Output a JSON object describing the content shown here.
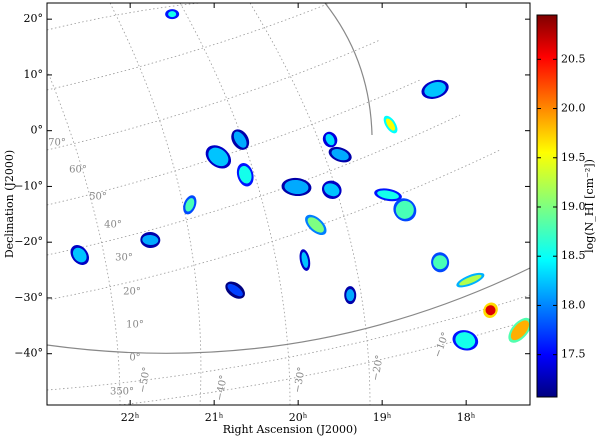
{
  "chart_data": {
    "type": "map",
    "xlabel": "Right Ascension (J2000)",
    "ylabel": "Declination (J2000)",
    "colorbar_label": "log(N_HI [cm⁻²])",
    "xlim": [
      22.99,
      17.24
    ],
    "ylim": [
      -49.2,
      22.9
    ],
    "xticks": [
      {
        "value": 22,
        "label": "22ʰ"
      },
      {
        "value": 21,
        "label": "21ʰ"
      },
      {
        "value": 20,
        "label": "20ʰ"
      },
      {
        "value": 19,
        "label": "19ʰ"
      },
      {
        "value": 18,
        "label": "18ʰ"
      }
    ],
    "yticks": [
      {
        "value": 20,
        "label": "20°"
      },
      {
        "value": 10,
        "label": "10°"
      },
      {
        "value": 0,
        "label": "0°"
      },
      {
        "value": -10,
        "label": "−10°"
      },
      {
        "value": -20,
        "label": "−20°"
      },
      {
        "value": -30,
        "label": "−30°"
      },
      {
        "value": -40,
        "label": "−40°"
      }
    ],
    "clim": [
      17.07,
      20.95
    ],
    "cticks": [
      {
        "value": 17.5,
        "label": "17.5"
      },
      {
        "value": 18,
        "label": "18.0"
      },
      {
        "value": 18.5,
        "label": "18.5"
      },
      {
        "value": 19,
        "label": "19.0"
      },
      {
        "value": 19.5,
        "label": "19.5"
      },
      {
        "value": 20,
        "label": "20.0"
      },
      {
        "value": 20.5,
        "label": "20.5"
      }
    ],
    "colormap": "jet",
    "x": [
      21.5,
      20.95,
      20.63,
      21.29,
      20.69,
      20.02,
      19.79,
      19.92,
      19.6,
      19.62,
      18.93,
      18.73,
      18.31,
      17.71,
      17.95,
      18.01,
      22.6,
      19.38,
      20.75,
      18.37,
      19.5,
      18.9,
      21.76,
      17.36
    ],
    "y": [
      20.9,
      -4.7,
      -7.9,
      -13.3,
      -1.6,
      -10.1,
      -16.9,
      -23.2,
      -10.6,
      -1.6,
      -11.5,
      -14.2,
      -23.6,
      -32.2,
      -26.8,
      -37.6,
      -22.3,
      -29.5,
      -28.6,
      7.4,
      -4.3,
      1.1,
      -19.6,
      -35.8
    ],
    "values": [
      18.6,
      18.3,
      18.6,
      18.8,
      18.2,
      18.2,
      19.0,
      18.3,
      18.3,
      18.4,
      18.6,
      18.8,
      18.8,
      20.6,
      19.2,
      18.6,
      18.3,
      18.2,
      17.8,
      18.3,
      18.2,
      19.5,
      18.2,
      19.8
    ],
    "graticule_labels": [
      "70°",
      "60°",
      "50°",
      "40°",
      "30°",
      "20°",
      "10°",
      "0°",
      "350°",
      "−50°",
      "−40°",
      "−30°",
      "−20°",
      "−10°"
    ]
  }
}
